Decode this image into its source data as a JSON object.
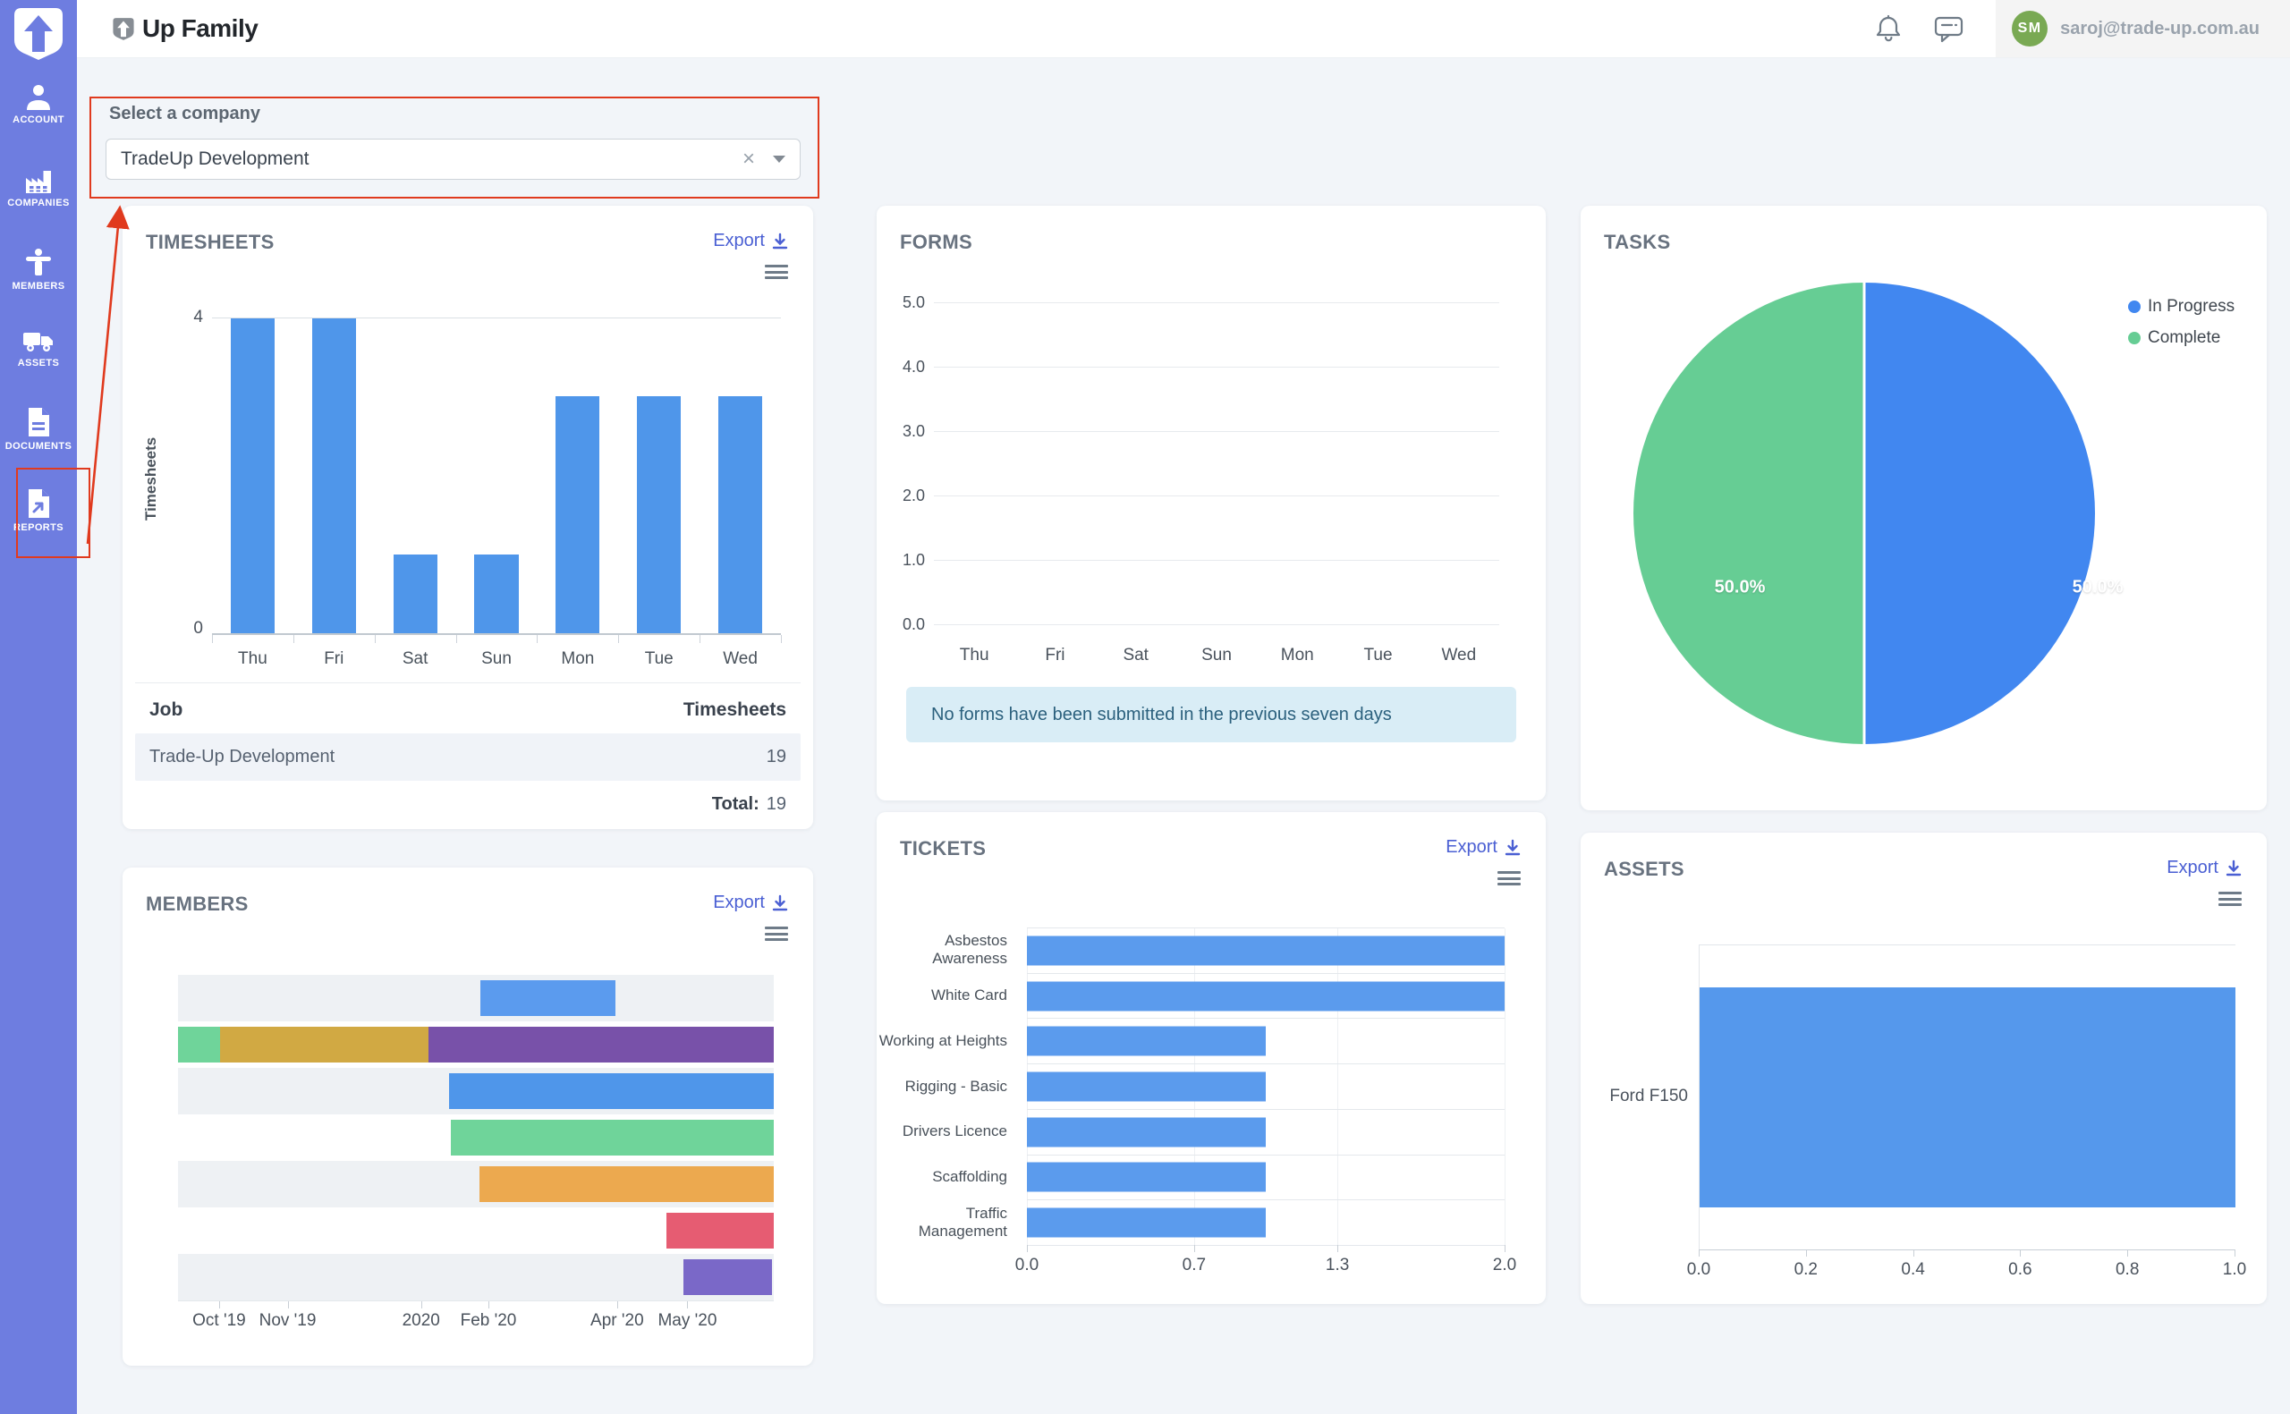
{
  "header": {
    "logo_text": "Up Family",
    "email": "saroj@trade-up.com.au",
    "avatar_initials": "SM"
  },
  "sidebar": {
    "items": [
      {
        "label": "ACCOUNT"
      },
      {
        "label": "COMPANIES"
      },
      {
        "label": "MEMBERS"
      },
      {
        "label": "ASSETS"
      },
      {
        "label": "DOCUMENTS"
      },
      {
        "label": "REPORTS"
      }
    ]
  },
  "company_select": {
    "label": "Select a company",
    "value": "TradeUp Development",
    "clear_icon": "×"
  },
  "cards": {
    "timesheets": {
      "title": "TIMESHEETS",
      "export_label": "Export",
      "table": {
        "col_job": "Job",
        "col_timesheets": "Timesheets",
        "rows": [
          {
            "job": "Trade-Up Development",
            "timesheets": "19"
          }
        ],
        "total_label": "Total:",
        "total_value": "19"
      }
    },
    "forms": {
      "title": "FORMS",
      "empty_message": "No forms have been submitted in the previous seven days"
    },
    "tasks": {
      "title": "TASKS"
    },
    "members": {
      "title": "MEMBERS",
      "export_label": "Export"
    },
    "tickets": {
      "title": "TICKETS",
      "export_label": "Export"
    },
    "assets": {
      "title": "ASSETS",
      "export_label": "Export"
    }
  },
  "chart_data": [
    {
      "id": "timesheets",
      "type": "bar",
      "title": "TIMESHEETS",
      "categories": [
        "Thu",
        "Fri",
        "Sat",
        "Sun",
        "Mon",
        "Tue",
        "Wed"
      ],
      "values": [
        4,
        4,
        1,
        1,
        3,
        3,
        3
      ],
      "xlabel": "",
      "ylabel": "Timesheets",
      "ylim": [
        0,
        4
      ],
      "yticks_shown": [
        "4",
        "0"
      ],
      "bar_color": "#4f96ea",
      "grid": "top-line-only"
    },
    {
      "id": "forms",
      "type": "line",
      "title": "FORMS",
      "categories": [
        "Thu",
        "Fri",
        "Sat",
        "Sun",
        "Mon",
        "Tue",
        "Wed"
      ],
      "series": [],
      "ylim": [
        0,
        5
      ],
      "yticks": [
        "5.0",
        "4.0",
        "3.0",
        "2.0",
        "1.0",
        "0.0"
      ],
      "grid": "horizontal",
      "note": "no data plotted"
    },
    {
      "id": "tasks",
      "type": "pie",
      "title": "TASKS",
      "labels": [
        "In Progress",
        "Complete"
      ],
      "values": [
        50.0,
        50.0
      ],
      "display_labels": [
        "50.0%",
        "50.0%"
      ],
      "colors": [
        "#4187f0",
        "#66cd94"
      ],
      "legend_position": "top-right"
    },
    {
      "id": "members",
      "type": "gantt",
      "title": "MEMBERS",
      "xticks": [
        {
          "label": "Oct '19",
          "pos": 6.9
        },
        {
          "label": "Nov '19",
          "pos": 18.4
        },
        {
          "label": "2020",
          "pos": 40.8
        },
        {
          "label": "Feb '20",
          "pos": 52.1
        },
        {
          "label": "Apr '20",
          "pos": 73.7
        },
        {
          "label": "May '20",
          "pos": 85.5
        }
      ],
      "rows": [
        {
          "shaded": true,
          "segments": [
            {
              "start": 50.8,
              "width": 22.7,
              "color": "#5b9bee"
            }
          ]
        },
        {
          "shaded": false,
          "segments": [
            {
              "start": 0,
              "width": 7,
              "color": "#6fd49a"
            },
            {
              "start": 7,
              "width": 35,
              "color": "#d1a943"
            },
            {
              "start": 42,
              "width": 58,
              "color": "#7851a9"
            }
          ]
        },
        {
          "shaded": true,
          "segments": [
            {
              "start": 45.5,
              "width": 54.5,
              "color": "#4f96ea"
            }
          ]
        },
        {
          "shaded": false,
          "segments": [
            {
              "start": 45.8,
              "width": 54.2,
              "color": "#6fd49a"
            }
          ]
        },
        {
          "shaded": true,
          "segments": [
            {
              "start": 50.6,
              "width": 49.4,
              "color": "#eca94f"
            }
          ]
        },
        {
          "shaded": false,
          "segments": [
            {
              "start": 82,
              "width": 18,
              "color": "#e65c72"
            }
          ]
        },
        {
          "shaded": true,
          "segments": [
            {
              "start": 84.8,
              "width": 14.9,
              "color": "#7a68c8"
            }
          ]
        }
      ]
    },
    {
      "id": "tickets",
      "type": "bar-horizontal",
      "title": "TICKETS",
      "categories": [
        "Asbestos Awareness",
        "White Card",
        "Working at Heights",
        "Rigging - Basic",
        "Drivers Licence",
        "Scaffolding",
        "Traffic Management"
      ],
      "values": [
        2,
        2,
        1,
        1,
        1,
        1,
        1
      ],
      "xmax": 2,
      "xticks": [
        {
          "label": "0.0",
          "pos": 0
        },
        {
          "label": "0.7",
          "pos": 35
        },
        {
          "label": "1.3",
          "pos": 65
        },
        {
          "label": "2.0",
          "pos": 100
        }
      ],
      "bar_color": "#5b9bed",
      "grid": "both"
    },
    {
      "id": "assets",
      "type": "bar-horizontal",
      "title": "ASSETS",
      "categories": [
        "Ford F150"
      ],
      "values": [
        1.0
      ],
      "xmax": 1,
      "xticks": [
        {
          "label": "0.0",
          "pos": 0
        },
        {
          "label": "0.2",
          "pos": 20
        },
        {
          "label": "0.4",
          "pos": 40
        },
        {
          "label": "0.6",
          "pos": 60
        },
        {
          "label": "0.8",
          "pos": 80
        },
        {
          "label": "1.0",
          "pos": 100
        }
      ],
      "bar_color": "#5598ec",
      "grid": "frame"
    }
  ],
  "annotations": {
    "color": "#e03a1e",
    "boxes": [
      "company-select-region",
      "reports-sidebar-item"
    ],
    "arrow": "reports-to-company-select"
  }
}
